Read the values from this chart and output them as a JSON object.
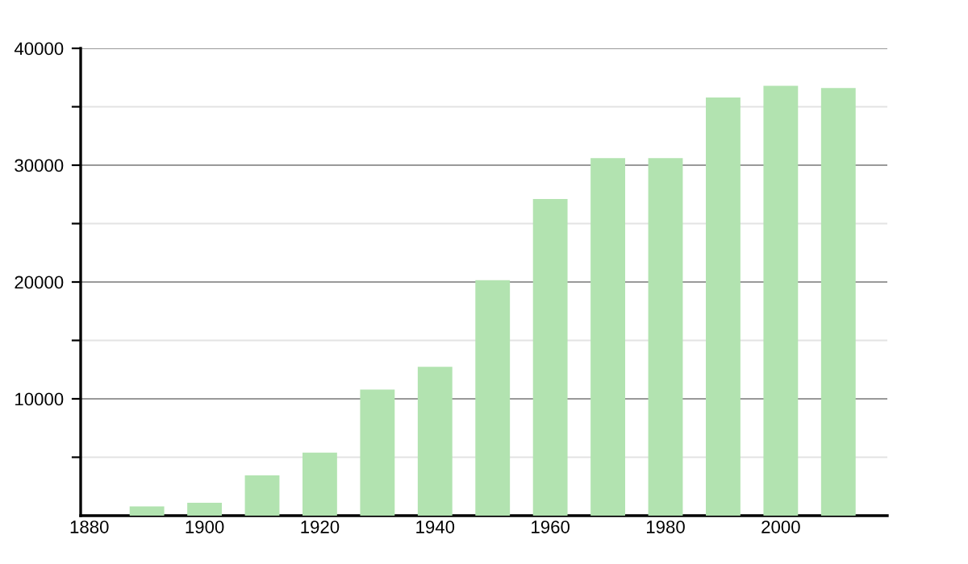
{
  "chart_data": {
    "type": "bar",
    "x": [
      1890,
      1900,
      1910,
      1920,
      1930,
      1940,
      1950,
      1960,
      1970,
      1980,
      1990,
      2000,
      2010
    ],
    "values": [
      800,
      1100,
      3450,
      5400,
      10800,
      12750,
      20150,
      27100,
      30600,
      30600,
      35800,
      36800,
      36600
    ],
    "color": "#b2e3b0",
    "xlim": [
      1878.5,
      2018.5
    ],
    "xticks": [
      1880,
      1900,
      1920,
      1940,
      1960,
      1980,
      2000
    ],
    "ylim": [
      0,
      40000
    ],
    "yticks": [
      {
        "value": 5000,
        "label": null
      },
      10000,
      {
        "value": 15000,
        "label": null
      },
      20000,
      {
        "value": 25000,
        "label": null
      },
      30000,
      {
        "value": 35000,
        "label": null
      },
      40000
    ],
    "grid": "y"
  }
}
